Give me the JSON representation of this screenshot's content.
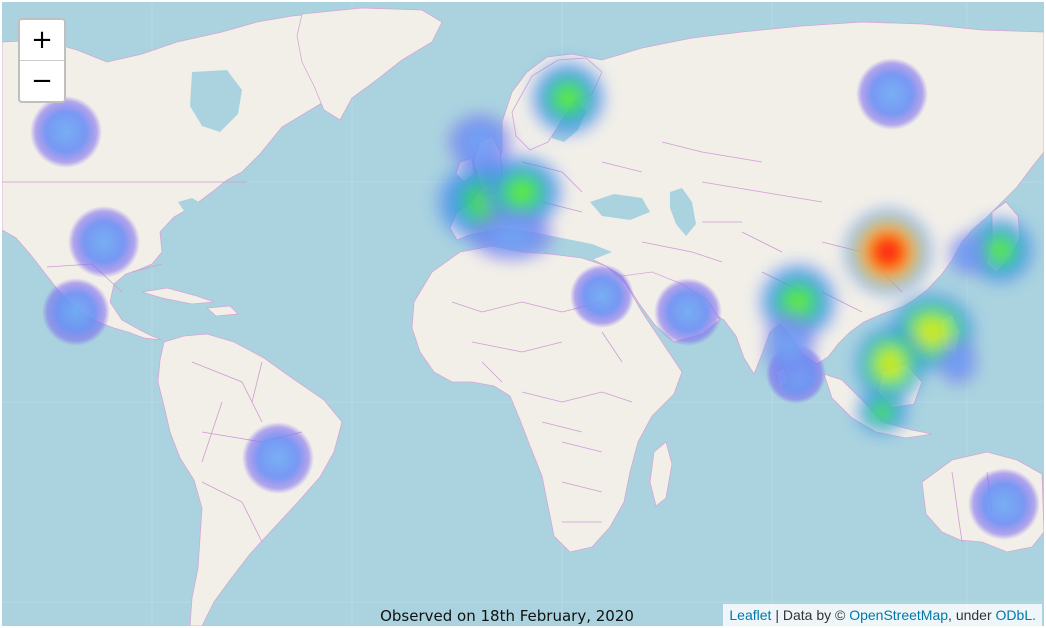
{
  "zoom": {
    "in_label": "+",
    "out_label": "−"
  },
  "caption": "Observed on 18th February, 2020",
  "attribution": {
    "leaflet_link": "Leaflet",
    "separator": " | Data by © ",
    "osm_link": "OpenStreetMap",
    "under_text": ", under ",
    "license_link": "ODbL."
  },
  "colors": {
    "ocean": "#aad3df",
    "land": "#f2efe9",
    "borders": "#cf9bd3",
    "link": "#0078a8"
  }
}
